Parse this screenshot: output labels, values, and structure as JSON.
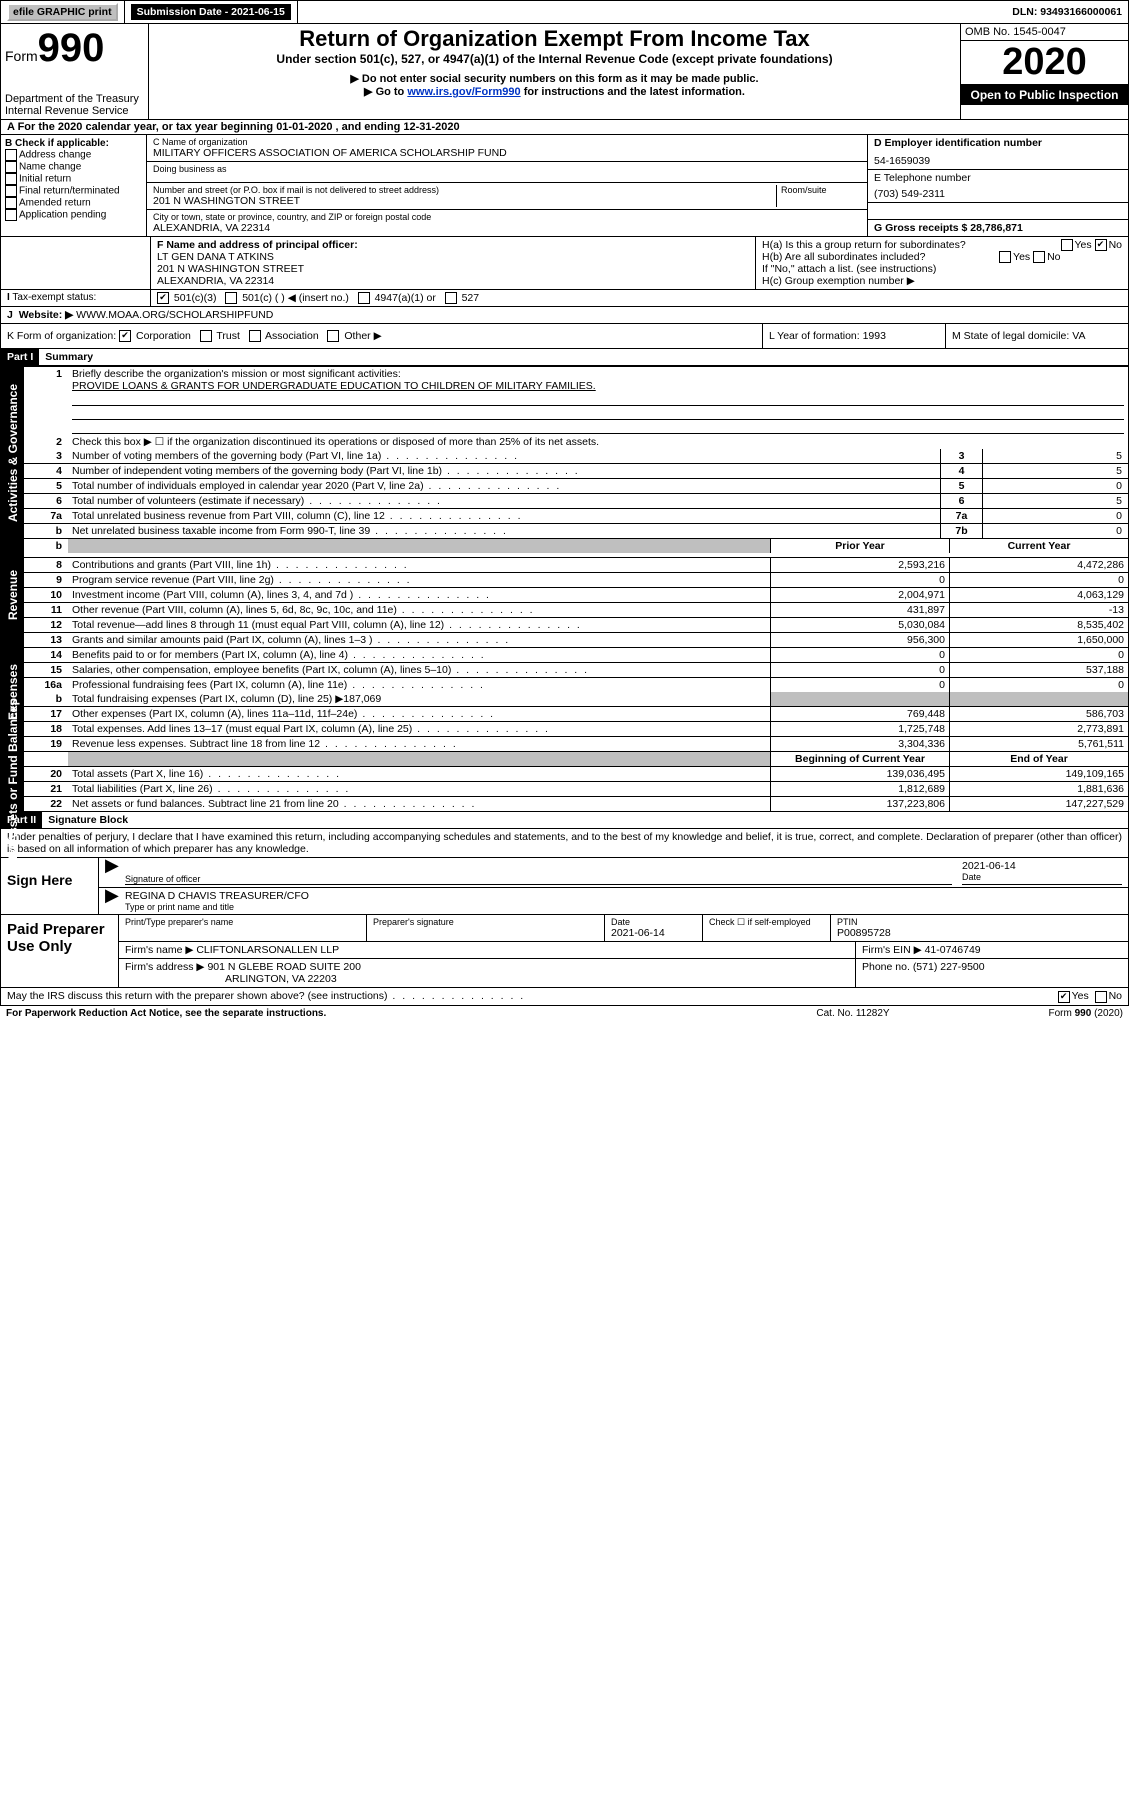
{
  "top": {
    "efile": "efile GRAPHIC print",
    "submission_label": "Submission Date - 2021-06-15",
    "dln": "DLN: 93493166000061"
  },
  "header": {
    "form_label": "Form",
    "form_num": "990",
    "dept": "Department of the Treasury",
    "irs": "Internal Revenue Service",
    "title": "Return of Organization Exempt From Income Tax",
    "subtitle": "Under section 501(c), 527, or 4947(a)(1) of the Internal Revenue Code (except private foundations)",
    "note1": "▶ Do not enter social security numbers on this form as it may be made public.",
    "note2_pre": "▶ Go to ",
    "note2_link": "www.irs.gov/Form990",
    "note2_post": " for instructions and the latest information.",
    "omb": "OMB No. 1545-0047",
    "year": "2020",
    "public": "Open to Public Inspection"
  },
  "line_a": "A For the 2020 calendar year, or tax year beginning 01-01-2020   , and ending 12-31-2020",
  "box_b": {
    "title": "B Check if applicable:",
    "items": [
      "Address change",
      "Name change",
      "Initial return",
      "Final return/terminated",
      "Amended return",
      "Application pending"
    ]
  },
  "box_c": {
    "label_name": "C Name of organization",
    "name": "MILITARY OFFICERS ASSOCIATION OF AMERICA SCHOLARSHIP FUND",
    "dba": "Doing business as",
    "addr_label": "Number and street (or P.O. box if mail is not delivered to street address)",
    "room": "Room/suite",
    "addr": "201 N WASHINGTON STREET",
    "city_label": "City or town, state or province, country, and ZIP or foreign postal code",
    "city": "ALEXANDRIA, VA  22314"
  },
  "box_d": {
    "label": "D Employer identification number",
    "val": "54-1659039"
  },
  "box_e": {
    "label": "E Telephone number",
    "val": "(703) 549-2311"
  },
  "box_g": "G Gross receipts $ 28,786,871",
  "box_f": {
    "label": "F  Name and address of principal officer:",
    "name": "LT GEN DANA T ATKINS",
    "addr1": "201 N WASHINGTON STREET",
    "addr2": "ALEXANDRIA, VA  22314"
  },
  "box_h": {
    "a": "H(a)  Is this a group return for subordinates?",
    "b": "H(b)  Are all subordinates included?",
    "note": "If \"No,\" attach a list. (see instructions)",
    "c": "H(c)  Group exemption number ▶"
  },
  "box_i": {
    "label": "Tax-exempt status:",
    "opts": [
      "501(c)(3)",
      "501(c) (  ) ◀ (insert no.)",
      "4947(a)(1) or",
      "527"
    ]
  },
  "box_j": {
    "label": "J",
    "text": "Website: ▶",
    "val": " WWW.MOAA.ORG/SCHOLARSHIPFUND"
  },
  "box_k": "K Form of organization:",
  "k_opts": [
    "Corporation",
    "Trust",
    "Association",
    "Other ▶"
  ],
  "box_l": "L Year of formation: 1993",
  "box_m": "M State of legal domicile: VA",
  "part1": {
    "title": "Part I",
    "subtitle": "Summary"
  },
  "summary": {
    "q1": "Briefly describe the organization's mission or most significant activities:",
    "q1_ans": "PROVIDE LOANS & GRANTS FOR UNDERGRADUATE EDUCATION TO CHILDREN OF MILITARY FAMILIES.",
    "q2": "Check this box ▶ ☐  if the organization discontinued its operations or disposed of more than 25% of its net assets.",
    "rows_gov": [
      {
        "n": "3",
        "label": "Number of voting members of the governing body (Part VI, line 1a)",
        "c": "3",
        "v": "5"
      },
      {
        "n": "4",
        "label": "Number of independent voting members of the governing body (Part VI, line 1b)",
        "c": "4",
        "v": "5"
      },
      {
        "n": "5",
        "label": "Total number of individuals employed in calendar year 2020 (Part V, line 2a)",
        "c": "5",
        "v": "0"
      },
      {
        "n": "6",
        "label": "Total number of volunteers (estimate if necessary)",
        "c": "6",
        "v": "5"
      },
      {
        "n": "7a",
        "label": "Total unrelated business revenue from Part VIII, column (C), line 12",
        "c": "7a",
        "v": "0"
      },
      {
        "n": "b",
        "label": "Net unrelated business taxable income from Form 990-T, line 39",
        "c": "7b",
        "v": "0"
      }
    ],
    "hdr_prior": "Prior Year",
    "hdr_curr": "Current Year",
    "rows_rev": [
      {
        "n": "8",
        "label": "Contributions and grants (Part VIII, line 1h)",
        "p": "2,593,216",
        "c": "4,472,286"
      },
      {
        "n": "9",
        "label": "Program service revenue (Part VIII, line 2g)",
        "p": "0",
        "c": "0"
      },
      {
        "n": "10",
        "label": "Investment income (Part VIII, column (A), lines 3, 4, and 7d )",
        "p": "2,004,971",
        "c": "4,063,129"
      },
      {
        "n": "11",
        "label": "Other revenue (Part VIII, column (A), lines 5, 6d, 8c, 9c, 10c, and 11e)",
        "p": "431,897",
        "c": "-13"
      },
      {
        "n": "12",
        "label": "Total revenue—add lines 8 through 11 (must equal Part VIII, column (A), line 12)",
        "p": "5,030,084",
        "c": "8,535,402"
      }
    ],
    "rows_exp": [
      {
        "n": "13",
        "label": "Grants and similar amounts paid (Part IX, column (A), lines 1–3 )",
        "p": "956,300",
        "c": "1,650,000"
      },
      {
        "n": "14",
        "label": "Benefits paid to or for members (Part IX, column (A), line 4)",
        "p": "0",
        "c": "0"
      },
      {
        "n": "15",
        "label": "Salaries, other compensation, employee benefits (Part IX, column (A), lines 5–10)",
        "p": "0",
        "c": "537,188"
      },
      {
        "n": "16a",
        "label": "Professional fundraising fees (Part IX, column (A), line 11e)",
        "p": "0",
        "c": "0"
      }
    ],
    "row16b": {
      "n": "b",
      "label": "Total fundraising expenses (Part IX, column (D), line 25) ▶187,069"
    },
    "rows_exp2": [
      {
        "n": "17",
        "label": "Other expenses (Part IX, column (A), lines 11a–11d, 11f–24e)",
        "p": "769,448",
        "c": "586,703"
      },
      {
        "n": "18",
        "label": "Total expenses. Add lines 13–17 (must equal Part IX, column (A), line 25)",
        "p": "1,725,748",
        "c": "2,773,891"
      },
      {
        "n": "19",
        "label": "Revenue less expenses. Subtract line 18 from line 12",
        "p": "3,304,336",
        "c": "5,761,511"
      }
    ],
    "hdr_boy": "Beginning of Current Year",
    "hdr_eoy": "End of Year",
    "rows_net": [
      {
        "n": "20",
        "label": "Total assets (Part X, line 16)",
        "p": "139,036,495",
        "c": "149,109,165"
      },
      {
        "n": "21",
        "label": "Total liabilities (Part X, line 26)",
        "p": "1,812,689",
        "c": "1,881,636"
      },
      {
        "n": "22",
        "label": "Net assets or fund balances. Subtract line 21 from line 20",
        "p": "137,223,806",
        "c": "147,227,529"
      }
    ]
  },
  "vtabs": {
    "gov": "Activities & Governance",
    "rev": "Revenue",
    "exp": "Expenses",
    "net": "Net Assets or Fund Balances"
  },
  "part2": {
    "title": "Part II",
    "subtitle": "Signature Block",
    "perjury": "Under penalties of perjury, I declare that I have examined this return, including accompanying schedules and statements, and to the best of my knowledge and belief, it is true, correct, and complete. Declaration of preparer (other than officer) is based on all information of which preparer has any knowledge."
  },
  "sign": {
    "here": "Sign Here",
    "sig_label": "Signature of officer",
    "date": "2021-06-14",
    "date_label": "Date",
    "name": "REGINA D CHAVIS  TREASURER/CFO",
    "name_label": "Type or print name and title"
  },
  "prep": {
    "title": "Paid Preparer Use Only",
    "h1": "Print/Type preparer's name",
    "h2": "Preparer's signature",
    "h3": "Date",
    "h3v": "2021-06-14",
    "h4": "Check ☐ if self-employed",
    "h5": "PTIN",
    "h5v": "P00895728",
    "firm_label": "Firm's name    ▶",
    "firm": "CLIFTONLARSONALLEN LLP",
    "ein_label": "Firm's EIN ▶",
    "ein": "41-0746749",
    "addr_label": "Firm's address ▶",
    "addr1": "901 N GLEBE ROAD SUITE 200",
    "addr2": "ARLINGTON, VA  22203",
    "phone_label": "Phone no.",
    "phone": "(571) 227-9500"
  },
  "discuss": "May the IRS discuss this return with the preparer shown above? (see instructions)",
  "footer": {
    "left": "For Paperwork Reduction Act Notice, see the separate instructions.",
    "mid": "Cat. No. 11282Y",
    "right": "Form 990 (2020)"
  }
}
